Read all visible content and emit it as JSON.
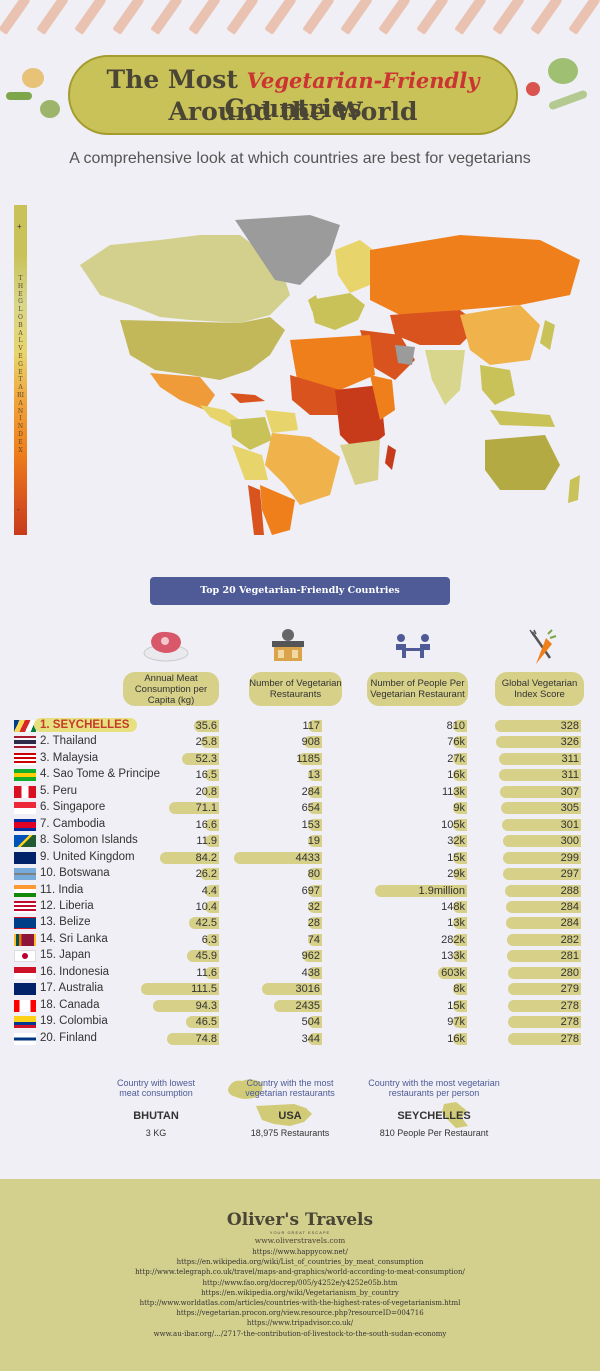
{
  "title": {
    "prefix": "The Most",
    "highlight": "Vegetarian-Friendly",
    "suffix": "Countries",
    "line2": "Around the World"
  },
  "subtitle": "A comprehensive look at which countries are best for vegetarians",
  "scale": {
    "label": "THE GLOBAL VEGETARIAN INDEX",
    "top_marker": "+",
    "bottom_marker": "-"
  },
  "banner": "Top 20 Vegetarian-Friendly Countries",
  "columns": {
    "meat": "Annual Meat Consumption per Capita (kg)",
    "restaurants": "Number of Vegetarian Restaurants",
    "people": "Number of People Per Vegetarian Restaurant",
    "score": "Global Vegetarian Index Score"
  },
  "icons": {
    "meat": "steak-icon",
    "restaurants": "restaurant-icon",
    "people": "diners-icon",
    "score": "fork-carrot-icon"
  },
  "countries": [
    {
      "name": "1. SEYCHELLES",
      "meat": "35.6",
      "restaurants": "117",
      "people": "810",
      "score": "328"
    },
    {
      "name": "2. Thailand",
      "meat": "25.8",
      "restaurants": "908",
      "people": "76k",
      "score": "326"
    },
    {
      "name": "3. Malaysia",
      "meat": "52.3",
      "restaurants": "1185",
      "people": "27k",
      "score": "311"
    },
    {
      "name": "4. Sao Tome & Principe",
      "meat": "16.5",
      "restaurants": "13",
      "people": "16k",
      "score": "311"
    },
    {
      "name": "5. Peru",
      "meat": "20.8",
      "restaurants": "284",
      "people": "113k",
      "score": "307"
    },
    {
      "name": "6. Singapore",
      "meat": "71.1",
      "restaurants": "654",
      "people": "9k",
      "score": "305"
    },
    {
      "name": "7. Cambodia",
      "meat": "16.6",
      "restaurants": "153",
      "people": "105k",
      "score": "301"
    },
    {
      "name": "8. Solomon Islands",
      "meat": "11.9",
      "restaurants": "19",
      "people": "32k",
      "score": "300"
    },
    {
      "name": "9. United Kingdom",
      "meat": "84.2",
      "restaurants": "4433",
      "people": "15k",
      "score": "299"
    },
    {
      "name": "10. Botswana",
      "meat": "26.2",
      "restaurants": "80",
      "people": "29k",
      "score": "297"
    },
    {
      "name": "11. India",
      "meat": "4.4",
      "restaurants": "697",
      "people": "1.9million",
      "score": "288"
    },
    {
      "name": "12. Liberia",
      "meat": "10.4",
      "restaurants": "32",
      "people": "148k",
      "score": "284"
    },
    {
      "name": "13. Belize",
      "meat": "42.5",
      "restaurants": "28",
      "people": "13k",
      "score": "284"
    },
    {
      "name": "14. Sri Lanka",
      "meat": "6.3",
      "restaurants": "74",
      "people": "282k",
      "score": "282"
    },
    {
      "name": "15. Japan",
      "meat": "45.9",
      "restaurants": "962",
      "people": "133k",
      "score": "281"
    },
    {
      "name": "16. Indonesia",
      "meat": "11.6",
      "restaurants": "438",
      "people": "603k",
      "score": "280"
    },
    {
      "name": "17. Australia",
      "meat": "111.5",
      "restaurants": "3016",
      "people": "8k",
      "score": "279"
    },
    {
      "name": "18. Canada",
      "meat": "94.3",
      "restaurants": "2435",
      "people": "15k",
      "score": "278"
    },
    {
      "name": "19. Colombia",
      "meat": "46.5",
      "restaurants": "504",
      "people": "97k",
      "score": "278"
    },
    {
      "name": "20. Finland",
      "meat": "74.8",
      "restaurants": "344",
      "people": "16k",
      "score": "278"
    }
  ],
  "bar_levels": {
    "meat": [
      0.32,
      0.23,
      0.47,
      0.15,
      0.19,
      0.64,
      0.15,
      0.11,
      0.76,
      0.24,
      0.04,
      0.09,
      0.38,
      0.06,
      0.41,
      0.1,
      1.0,
      0.85,
      0.42,
      0.67
    ],
    "restaurants": [
      0.03,
      0.2,
      0.27,
      0.0,
      0.06,
      0.15,
      0.03,
      0.0,
      1.0,
      0.02,
      0.16,
      0.01,
      0.01,
      0.02,
      0.22,
      0.1,
      0.68,
      0.55,
      0.11,
      0.08
    ],
    "people": [
      0.0,
      0.04,
      0.01,
      0.01,
      0.06,
      0.0,
      0.06,
      0.02,
      0.01,
      0.02,
      1.0,
      0.08,
      0.01,
      0.15,
      0.07,
      0.32,
      0.0,
      0.01,
      0.05,
      0.01
    ],
    "score": [
      1.0,
      0.99,
      0.95,
      0.95,
      0.94,
      0.93,
      0.92,
      0.91,
      0.91,
      0.91,
      0.88,
      0.87,
      0.87,
      0.86,
      0.86,
      0.85,
      0.85,
      0.85,
      0.85,
      0.85
    ]
  },
  "summary": [
    {
      "caption": "Country with lowest meat consumption",
      "country": "BHUTAN",
      "value": "3 KG"
    },
    {
      "caption": "Country with the most vegetarian restaurants",
      "country": "USA",
      "value": "18,975 Restaurants"
    },
    {
      "caption": "Country with the most vegetarian restaurants per person",
      "country": "SEYCHELLES",
      "value": "810 People Per Restaurant"
    }
  ],
  "footer": {
    "logo": "Oliver's Travels",
    "logo_tagline": "YOUR GREAT ESCAPE",
    "site": "www.oliverstravels.com",
    "sources": [
      "https://www.happycow.net/",
      "https://en.wikipedia.org/wiki/List_of_countries_by_meat_consumption",
      "http://www.telegraph.co.uk/travel/maps-and-graphics/world-according-to-meat-consumption/",
      "http://www.fao.org/docrep/005/y4252e/y4252e05b.htm",
      "https://en.wikipedia.org/wiki/Vegetarianism_by_country",
      "http://www.worldatlas.com/articles/countries-with-the-highest-rates-of-vegetarianism.html",
      "https://vegetarian.procon.org/view.resource.php?resourceID=004716",
      "https://www.tripadvisor.co.uk/",
      "www.au-ibar.org/.../2717-the-contribution-of-livestock-to-the-south-sudan-economy"
    ]
  },
  "colors": {
    "olive": "#c9c258",
    "bar": "#d6d088",
    "banner": "#4e5b96",
    "accent_red": "#c53a2a",
    "footer": "#d3cf8d"
  }
}
